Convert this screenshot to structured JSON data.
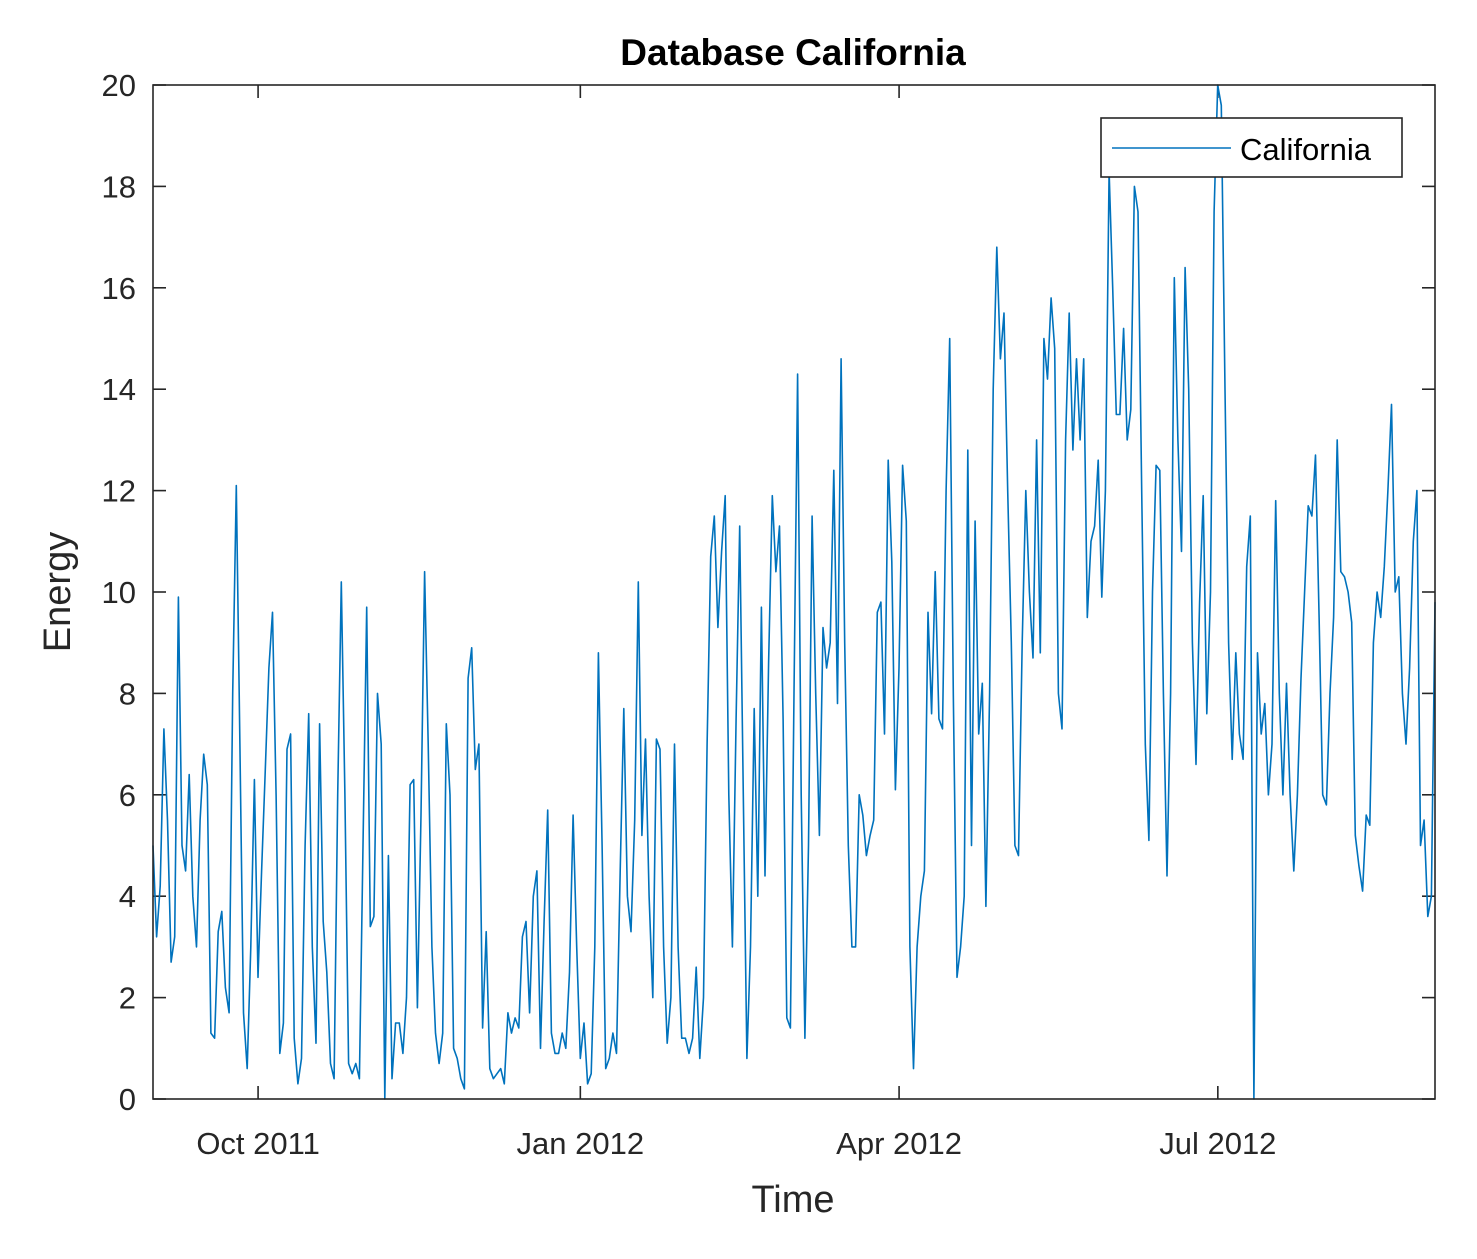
{
  "chart_data": {
    "type": "line",
    "title": "Database California",
    "xlabel": "Time",
    "ylabel": "Energy",
    "x_start": "2011-09-01",
    "x_end": "2012-09-01",
    "x_range_days": [
      0,
      366
    ],
    "ylim": [
      0,
      20
    ],
    "grid": false,
    "legend_position": "top-right",
    "line_color": "#0072BD",
    "xticks": [
      {
        "label": "Oct 2011",
        "day": 30
      },
      {
        "label": "Jan 2012",
        "day": 122
      },
      {
        "label": "Apr 2012",
        "day": 213
      },
      {
        "label": "Jul 2012",
        "day": 304
      }
    ],
    "yticks": [
      0,
      2,
      4,
      6,
      8,
      10,
      12,
      14,
      16,
      18,
      20
    ],
    "series": [
      {
        "name": "California",
        "sampling": "approximately daily, evenly spaced over x range",
        "values": [
          5,
          3.2,
          4.2,
          7.3,
          5.5,
          2.7,
          3.2,
          9.9,
          5,
          4.5,
          6.4,
          4,
          3,
          5.5,
          6.8,
          6.2,
          1.3,
          1.2,
          3.3,
          3.7,
          2.2,
          1.7,
          8,
          12.1,
          7,
          1.7,
          0.6,
          3,
          6.3,
          2.4,
          4.5,
          6.5,
          8.5,
          9.6,
          6,
          0.9,
          1.5,
          6.9,
          7.2,
          1.2,
          0.3,
          0.8,
          5,
          7.6,
          3,
          1.1,
          7.4,
          3.5,
          2.5,
          0.7,
          0.4,
          6,
          10.2,
          6,
          0.7,
          0.5,
          0.7,
          0.4,
          5,
          9.7,
          3.4,
          3.6,
          8,
          7,
          0,
          4.8,
          0.4,
          1.5,
          1.5,
          0.9,
          2,
          6.2,
          6.3,
          1.8,
          5.6,
          10.4,
          7,
          3,
          1.3,
          0.7,
          1.3,
          7.4,
          6,
          1,
          0.8,
          0.4,
          0.2,
          8.3,
          8.9,
          6.5,
          7,
          1.4,
          3.3,
          0.6,
          0.4,
          0.5,
          0.6,
          0.3,
          1.7,
          1.3,
          1.6,
          1.4,
          3.2,
          3.5,
          1.7,
          4,
          4.5,
          1,
          3.5,
          5.7,
          1.3,
          0.9,
          0.9,
          1.3,
          1,
          2.5,
          5.6,
          3,
          0.8,
          1.5,
          0.3,
          0.5,
          3,
          8.8,
          5,
          0.6,
          0.8,
          1.3,
          0.9,
          4.5,
          7.7,
          4,
          3.3,
          5.5,
          10.2,
          5.2,
          7.1,
          4,
          2,
          7.1,
          6.9,
          3,
          1.1,
          2,
          7,
          3,
          1.2,
          1.2,
          0.9,
          1.2,
          2.6,
          0.8,
          2,
          7,
          10.7,
          11.5,
          9.3,
          10.8,
          11.9,
          6,
          3,
          7.5,
          11.3,
          6,
          0.8,
          3,
          7.7,
          4,
          9.7,
          4.4,
          8.6,
          11.9,
          10.4,
          11.3,
          7.5,
          1.6,
          1.4,
          8,
          14.3,
          6,
          1.2,
          5,
          11.5,
          8,
          5.2,
          9.3,
          8.5,
          9,
          12.4,
          7.8,
          14.6,
          9,
          5,
          3,
          3,
          6,
          5.6,
          4.8,
          5.2,
          5.5,
          9.6,
          9.8,
          7.2,
          12.6,
          10.6,
          6.1,
          8.5,
          12.5,
          11.4,
          3,
          0.6,
          3,
          4,
          4.5,
          9.6,
          7.6,
          10.4,
          7.5,
          7.3,
          12,
          15,
          8,
          2.4,
          3,
          4,
          12.8,
          5,
          11.4,
          7.2,
          8.2,
          3.8,
          8,
          14,
          16.8,
          14.6,
          15.5,
          12,
          9,
          5,
          4.8,
          9,
          12,
          10,
          8.7,
          13,
          8.8,
          15,
          14.2,
          15.8,
          14.8,
          8,
          7.3,
          13,
          15.5,
          12.8,
          14.6,
          13,
          14.6,
          9.5,
          11,
          11.3,
          12.6,
          9.9,
          12,
          18.3,
          16,
          13.5,
          13.5,
          15.2,
          13,
          13.6,
          18,
          17.5,
          12,
          7,
          5.1,
          10,
          12.5,
          12.4,
          8,
          4.4,
          8,
          16.2,
          13,
          10.8,
          16.4,
          14,
          9,
          6.6,
          9.8,
          11.9,
          7.6,
          10,
          17.5,
          20,
          19.6,
          14,
          9,
          6.7,
          8.8,
          7.2,
          6.7,
          10.5,
          11.5,
          0,
          8.8,
          7.2,
          7.8,
          6,
          7,
          11.8,
          8,
          6,
          8.2,
          6,
          4.5,
          6,
          8.3,
          10,
          11.7,
          11.5,
          12.7,
          9.5,
          6,
          5.8,
          8,
          9.5,
          13,
          10.4,
          10.3,
          10,
          9.4,
          5.2,
          4.6,
          4.1,
          5.6,
          5.4,
          9,
          10,
          9.5,
          10.5,
          12,
          13.7,
          10,
          10.3,
          8,
          7,
          8.5,
          11,
          12,
          5,
          5.5,
          3.6,
          4,
          9.8
        ]
      }
    ]
  }
}
